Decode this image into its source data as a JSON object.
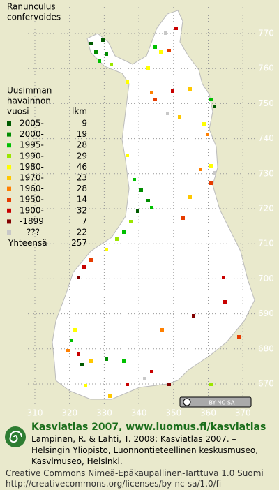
{
  "title": [
    "Ranunculus",
    "confervoides"
  ],
  "legend": {
    "header": [
      "Uusimman",
      "havainnon",
      "vuosi"
    ],
    "count_header": "lkm",
    "rows": [
      {
        "label": "2005-",
        "count": 9,
        "color": "#005a00"
      },
      {
        "label": "2000-",
        "count": 19,
        "color": "#008c00"
      },
      {
        "label": "1995-",
        "count": 28,
        "color": "#00c000"
      },
      {
        "label": "1990-",
        "count": 29,
        "color": "#9be600"
      },
      {
        "label": "1980-",
        "count": 46,
        "color": "#ffff00"
      },
      {
        "label": "1970-",
        "count": 23,
        "color": "#ffc800"
      },
      {
        "label": "1960-",
        "count": 28,
        "color": "#ff8000"
      },
      {
        "label": "1950-",
        "count": 14,
        "color": "#e63c00"
      },
      {
        "label": "1900-",
        "count": 32,
        "color": "#c80000"
      },
      {
        "label": "-1899",
        "count": 7,
        "color": "#820000"
      },
      {
        "label": "???",
        "count": 22,
        "color": "#c8c8c8"
      }
    ],
    "total_label": "Yhteensä",
    "total": 257
  },
  "grid": {
    "north": [
      770,
      760,
      750,
      740,
      730,
      720,
      710,
      700,
      690,
      680,
      670
    ],
    "east": [
      310,
      320,
      330,
      340,
      350,
      360,
      370
    ]
  },
  "license_badge": "BY-NC-SA",
  "footer": {
    "heading": "Kasviatlas 2007, www.luomus.fi/kasviatlas",
    "citation": [
      "Lampinen, R. & Lahti, T. 2008: Kasviatlas 2007. –",
      "Helsingin Yliopisto, Luonnontieteellinen keskusmuseo,",
      "Kasvimuseo, Helsinki."
    ],
    "license": [
      "Creative Commons Nimeä-Epäkaupallinen-Tarttuva 1.0 Suomi",
      "http://creativecommons.org/licenses/by-nc-sa/1.0/fi"
    ]
  }
}
